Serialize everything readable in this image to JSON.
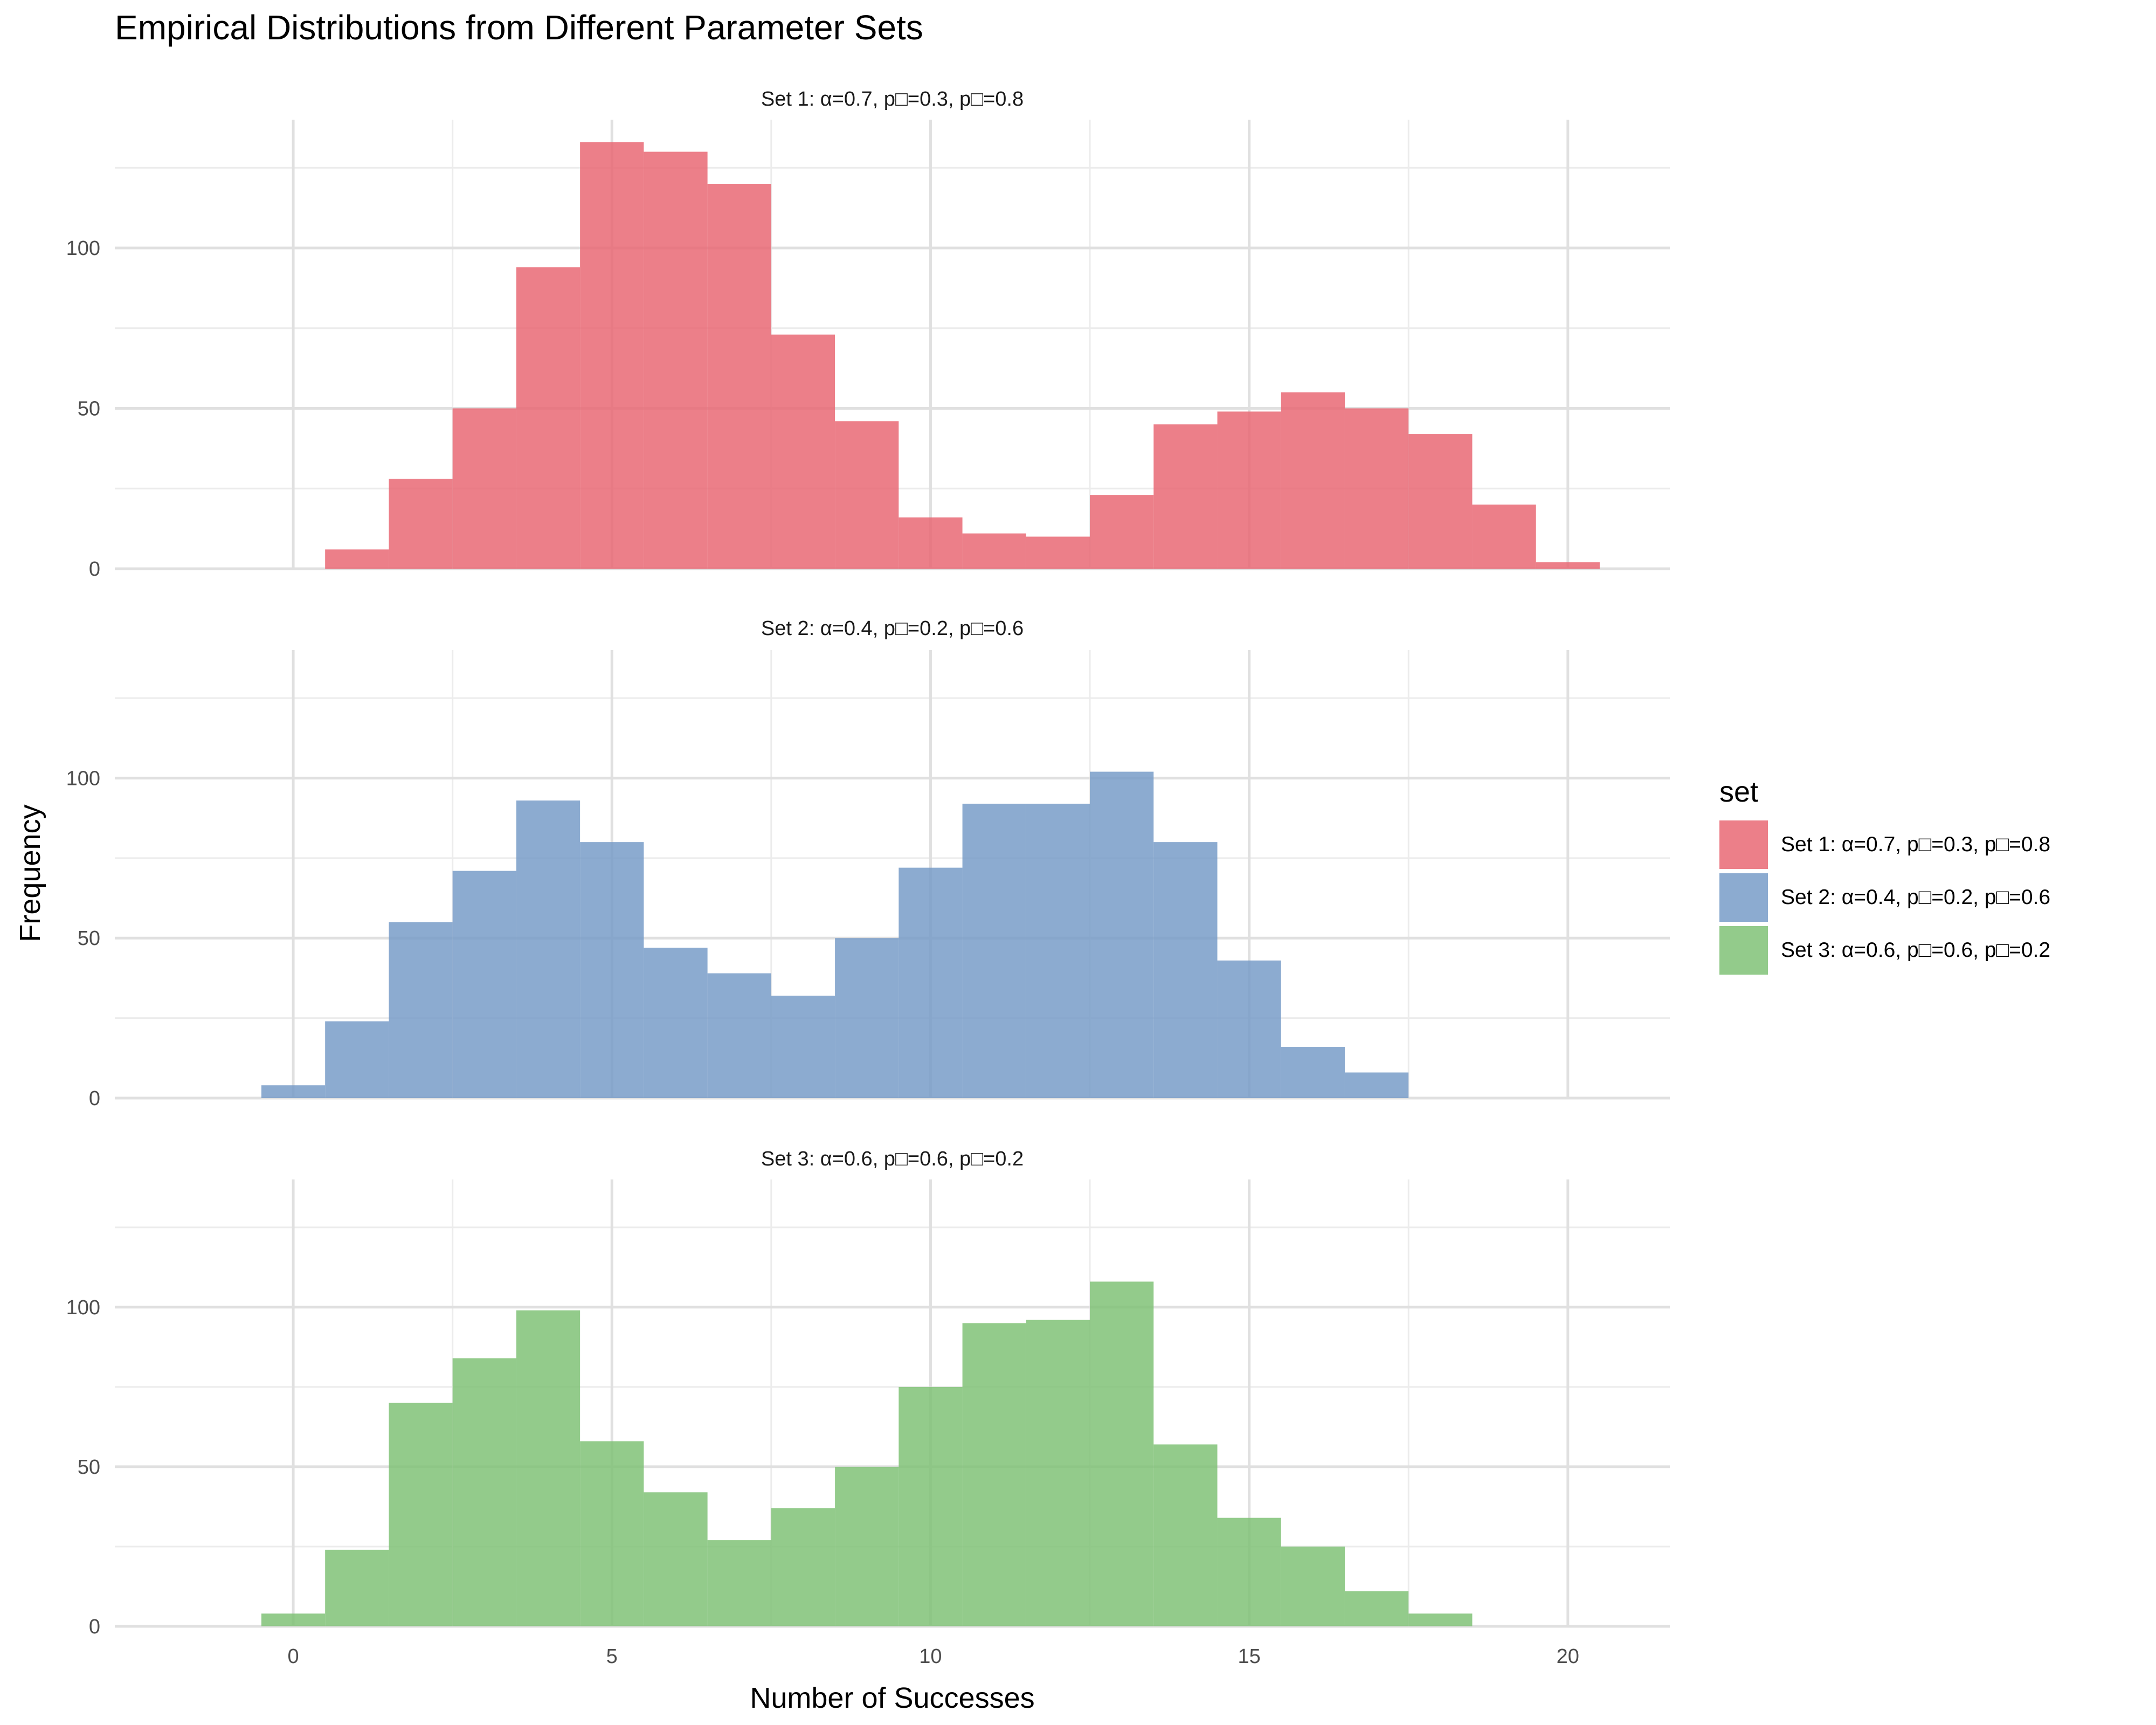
{
  "chart_data": {
    "type": "bar",
    "title": "Empirical Distributions from Different Parameter Sets",
    "xlabel": "Number of Successes",
    "ylabel": "Frequency",
    "xlim": [
      -2.8,
      21.6
    ],
    "ylim": [
      0,
      140
    ],
    "x_ticks": [
      0,
      5,
      10,
      15,
      20
    ],
    "y_ticks": [
      0,
      50,
      100
    ],
    "grid": true,
    "legend_title": "set",
    "legend_position": "right",
    "panels": [
      {
        "name": "Set 1: α=0.7, p□=0.3, p□=0.8",
        "color": "#e8636f",
        "x": [
          1,
          2,
          3,
          4,
          5,
          6,
          7,
          8,
          9,
          10,
          11,
          12,
          13,
          14,
          15,
          16,
          17,
          18,
          19,
          20
        ],
        "values": [
          6,
          28,
          50,
          94,
          133,
          130,
          120,
          73,
          46,
          16,
          11,
          10,
          23,
          45,
          49,
          55,
          50,
          42,
          20,
          2
        ]
      },
      {
        "name": "Set 2: α=0.4, p□=0.2, p□=0.6",
        "color": "#7399c6",
        "x": [
          0,
          1,
          2,
          3,
          4,
          5,
          6,
          7,
          8,
          9,
          10,
          11,
          12,
          13,
          14,
          15,
          16,
          17
        ],
        "values": [
          4,
          24,
          55,
          71,
          93,
          80,
          47,
          39,
          32,
          50,
          72,
          92,
          92,
          102,
          80,
          43,
          16,
          8
        ]
      },
      {
        "name": "Set 3: α=0.6, p□=0.6, p□=0.2",
        "color": "#7bbf72",
        "x": [
          0,
          1,
          2,
          3,
          4,
          5,
          6,
          7,
          8,
          9,
          10,
          11,
          12,
          13,
          14,
          15,
          16,
          17,
          18
        ],
        "values": [
          4,
          24,
          70,
          84,
          99,
          58,
          42,
          27,
          37,
          50,
          75,
          95,
          96,
          108,
          57,
          34,
          25,
          11,
          4
        ]
      }
    ]
  }
}
